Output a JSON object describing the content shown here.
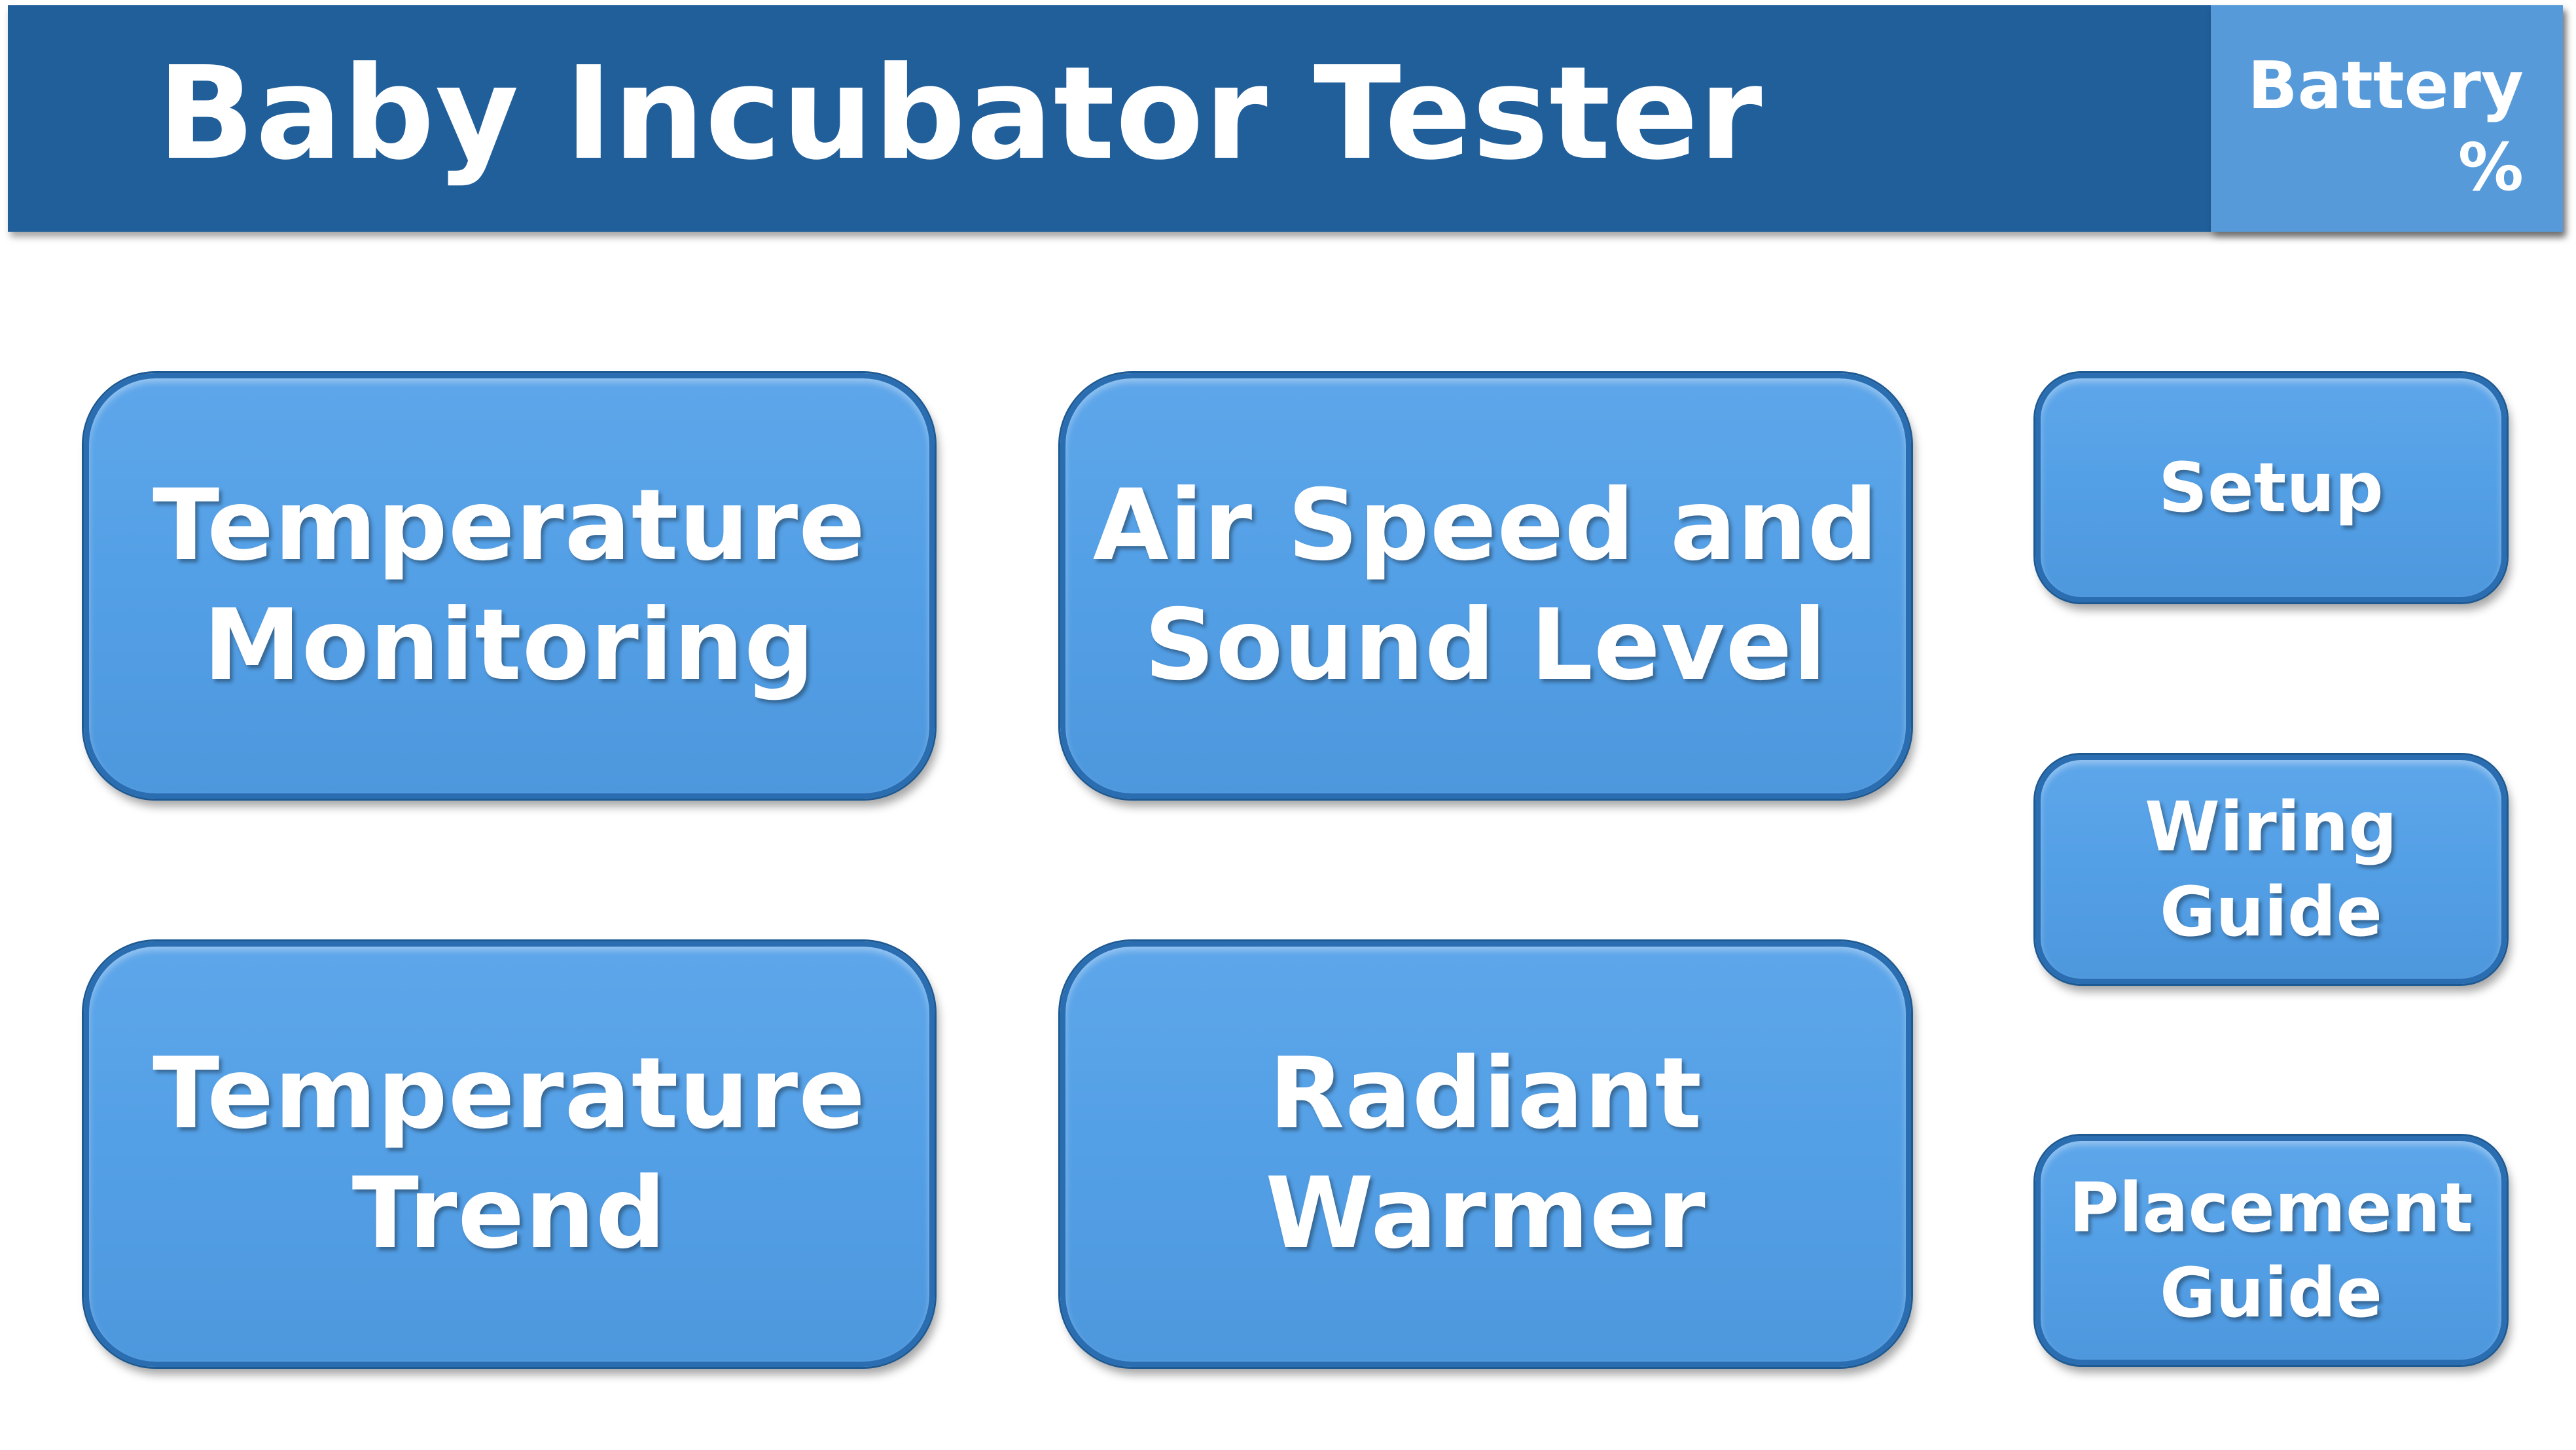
{
  "header": {
    "title": "Baby Incubator Tester",
    "battery_label": "Battery\n%"
  },
  "main_buttons": {
    "temperature_monitoring": "Temperature\nMonitoring",
    "air_speed_sound_level": "Air Speed and\nSound Level",
    "temperature_trend": "Temperature\nTrend",
    "radiant_warmer": "Radiant\nWarmer"
  },
  "side_buttons": {
    "setup": "Setup",
    "wiring_guide": "Wiring\nGuide",
    "placement_guide": "Placement\nGuide"
  },
  "colors": {
    "header_bg": "#215f9a",
    "battery_bg": "#569ad9",
    "button_fill": "#54a0e6",
    "button_border": "#2a6db0",
    "text": "#ffffff"
  }
}
